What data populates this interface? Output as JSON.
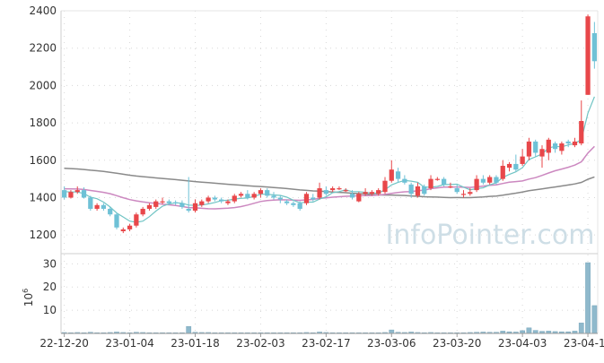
{
  "watermark": "InfoPointer.com",
  "colors": {
    "up": "#e8474a",
    "down": "#6ec1d6",
    "ma5": "#70c4c4",
    "ma20": "#cc88c0",
    "ma60": "#8a8a8a",
    "volume": "#8fb9cc",
    "grid": "#d8d8d8",
    "text": "#333333"
  },
  "chart_data": [
    {
      "type": "candlestick",
      "ylim": [
        1100,
        2400
      ],
      "yticks": [
        1200,
        1400,
        1600,
        1800,
        2000,
        2200,
        2400
      ],
      "grid": true,
      "series_lines": [
        "ma5",
        "ma20",
        "ma60"
      ],
      "candles": [
        [
          1440,
          1400,
          1460,
          1390
        ],
        [
          1400,
          1430,
          1440,
          1395
        ],
        [
          1430,
          1440,
          1460,
          1420
        ],
        [
          1440,
          1400,
          1455,
          1395
        ],
        [
          1400,
          1340,
          1410,
          1330
        ],
        [
          1340,
          1360,
          1370,
          1330
        ],
        [
          1360,
          1340,
          1370,
          1330
        ],
        [
          1340,
          1310,
          1350,
          1300
        ],
        [
          1310,
          1240,
          1320,
          1230
        ],
        [
          1220,
          1230,
          1240,
          1210
        ],
        [
          1230,
          1250,
          1260,
          1220
        ],
        [
          1250,
          1310,
          1320,
          1240
        ],
        [
          1310,
          1340,
          1350,
          1300
        ],
        [
          1340,
          1360,
          1370,
          1330
        ],
        [
          1350,
          1380,
          1390,
          1340
        ],
        [
          1380,
          1380,
          1400,
          1365
        ],
        [
          1380,
          1370,
          1390,
          1360
        ],
        [
          1375,
          1370,
          1385,
          1360
        ],
        [
          1370,
          1350,
          1385,
          1340
        ],
        [
          1340,
          1330,
          1510,
          1320
        ],
        [
          1330,
          1370,
          1390,
          1320
        ],
        [
          1360,
          1380,
          1390,
          1350
        ],
        [
          1380,
          1400,
          1410,
          1370
        ],
        [
          1400,
          1390,
          1410,
          1380
        ],
        [
          1390,
          1380,
          1400,
          1370
        ],
        [
          1370,
          1380,
          1390,
          1360
        ],
        [
          1380,
          1410,
          1420,
          1370
        ],
        [
          1410,
          1420,
          1430,
          1400
        ],
        [
          1420,
          1400,
          1440,
          1390
        ],
        [
          1400,
          1420,
          1430,
          1390
        ],
        [
          1420,
          1440,
          1450,
          1400
        ],
        [
          1440,
          1410,
          1450,
          1400
        ],
        [
          1410,
          1400,
          1430,
          1390
        ],
        [
          1400,
          1390,
          1410,
          1370
        ],
        [
          1380,
          1370,
          1390,
          1360
        ],
        [
          1370,
          1360,
          1380,
          1350
        ],
        [
          1370,
          1340,
          1380,
          1330
        ],
        [
          1370,
          1420,
          1430,
          1360
        ],
        [
          1400,
          1390,
          1420,
          1380
        ],
        [
          1400,
          1450,
          1480,
          1390
        ],
        [
          1440,
          1420,
          1460,
          1410
        ],
        [
          1440,
          1450,
          1460,
          1430
        ],
        [
          1450,
          1450,
          1460,
          1440
        ],
        [
          1440,
          1440,
          1450,
          1430
        ],
        [
          1420,
          1400,
          1440,
          1390
        ],
        [
          1380,
          1420,
          1430,
          1375
        ],
        [
          1420,
          1430,
          1450,
          1410
        ],
        [
          1420,
          1430,
          1440,
          1410
        ],
        [
          1420,
          1440,
          1450,
          1410
        ],
        [
          1430,
          1490,
          1510,
          1420
        ],
        [
          1490,
          1550,
          1600,
          1480
        ],
        [
          1540,
          1500,
          1560,
          1480
        ],
        [
          1500,
          1480,
          1520,
          1470
        ],
        [
          1470,
          1420,
          1480,
          1400
        ],
        [
          1410,
          1460,
          1480,
          1400
        ],
        [
          1460,
          1420,
          1470,
          1410
        ],
        [
          1450,
          1500,
          1520,
          1440
        ],
        [
          1500,
          1500,
          1510,
          1490
        ],
        [
          1500,
          1470,
          1510,
          1460
        ],
        [
          1460,
          1460,
          1480,
          1450
        ],
        [
          1450,
          1430,
          1470,
          1420
        ],
        [
          1420,
          1420,
          1440,
          1400
        ],
        [
          1420,
          1430,
          1450,
          1410
        ],
        [
          1440,
          1500,
          1520,
          1430
        ],
        [
          1500,
          1480,
          1520,
          1470
        ],
        [
          1480,
          1510,
          1520,
          1470
        ],
        [
          1510,
          1480,
          1520,
          1470
        ],
        [
          1500,
          1570,
          1600,
          1490
        ],
        [
          1560,
          1580,
          1590,
          1540
        ],
        [
          1580,
          1550,
          1630,
          1540
        ],
        [
          1580,
          1620,
          1660,
          1570
        ],
        [
          1620,
          1700,
          1720,
          1600
        ],
        [
          1700,
          1640,
          1710,
          1620
        ],
        [
          1620,
          1660,
          1680,
          1560
        ],
        [
          1640,
          1710,
          1720,
          1600
        ],
        [
          1690,
          1660,
          1700,
          1640
        ],
        [
          1650,
          1690,
          1700,
          1630
        ],
        [
          1700,
          1690,
          1710,
          1670
        ],
        [
          1680,
          1700,
          1720,
          1670
        ],
        [
          1690,
          1810,
          1920,
          1680
        ],
        [
          1950,
          2370,
          2380,
          1950
        ],
        [
          2280,
          2130,
          2340,
          2090
        ]
      ]
    },
    {
      "type": "bar",
      "ylabel": "10",
      "ylabel_exponent": "6",
      "ylim": [
        0,
        34
      ],
      "yticks": [
        10,
        20,
        30
      ],
      "x_tick_labels": [
        "22-12-20",
        "23-01-04",
        "23-01-18",
        "23-02-03",
        "23-02-17",
        "23-03-06",
        "23-03-20",
        "23-04-03",
        "23-04-17"
      ],
      "x_tick_index": [
        0,
        10,
        20,
        30,
        40,
        50,
        60,
        70,
        80
      ],
      "values": [
        0.4,
        0.3,
        0.4,
        0.3,
        0.5,
        0.3,
        0.3,
        0.4,
        0.6,
        0.4,
        0.3,
        0.5,
        0.4,
        0.3,
        0.3,
        0.3,
        0.3,
        0.3,
        0.3,
        3.0,
        0.5,
        0.4,
        0.4,
        0.3,
        0.3,
        0.3,
        0.3,
        0.3,
        0.3,
        0.3,
        0.3,
        0.3,
        0.3,
        0.3,
        0.3,
        0.3,
        0.3,
        0.4,
        0.3,
        0.6,
        0.4,
        0.3,
        0.3,
        0.3,
        0.3,
        0.3,
        0.3,
        0.3,
        0.3,
        0.4,
        1.5,
        0.5,
        0.4,
        0.6,
        0.4,
        0.3,
        0.4,
        0.3,
        0.3,
        0.3,
        0.3,
        0.3,
        0.4,
        0.5,
        0.6,
        0.5,
        0.5,
        1.0,
        0.7,
        0.6,
        1.2,
        2.4,
        1.3,
        0.9,
        1.0,
        0.8,
        0.7,
        0.7,
        1.0,
        4.5,
        30.5,
        12.0
      ]
    }
  ]
}
